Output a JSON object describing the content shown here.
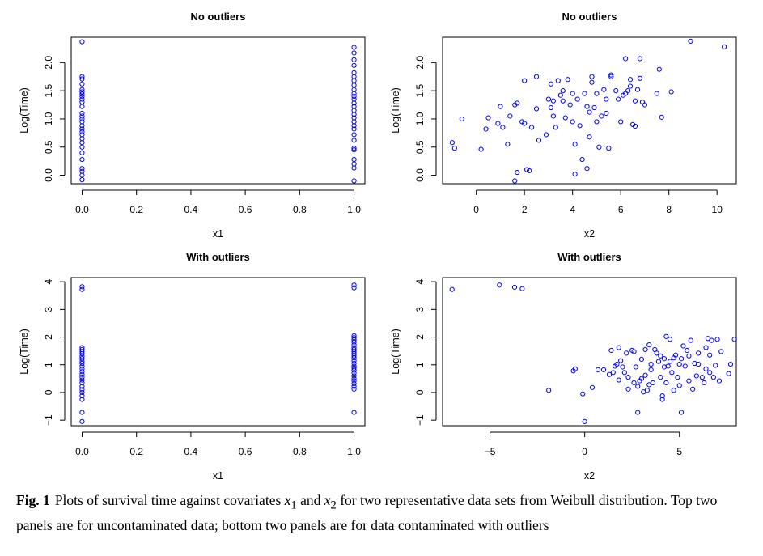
{
  "chart_data": [
    {
      "type": "scatter",
      "title": "No outliers",
      "xlabel": "x1",
      "ylabel": "Log(Time)",
      "xlim": [
        -0.04,
        1.04
      ],
      "ylim": [
        -0.15,
        2.45
      ],
      "xticks": [
        0.0,
        0.2,
        0.4,
        0.6,
        0.8,
        1.0
      ],
      "xtick_labels": [
        "0.0",
        "0.2",
        "0.4",
        "0.6",
        "0.8",
        "1.0"
      ],
      "yticks": [
        0.0,
        0.5,
        1.0,
        1.5,
        2.0
      ],
      "ytick_labels": [
        "0.0",
        "0.5",
        "1.0",
        "1.5",
        "2.0"
      ],
      "color": "#0000ff",
      "marker": "open-circle",
      "grid": false,
      "points": [
        [
          0,
          2.37
        ],
        [
          0,
          1.75
        ],
        [
          0,
          1.71
        ],
        [
          0,
          1.62
        ],
        [
          0,
          1.52
        ],
        [
          0,
          1.48
        ],
        [
          0,
          1.44
        ],
        [
          0,
          1.4
        ],
        [
          0,
          1.35
        ],
        [
          0,
          1.3
        ],
        [
          0,
          1.22
        ],
        [
          0,
          1.1
        ],
        [
          0,
          1.05
        ],
        [
          0,
          1.0
        ],
        [
          0,
          0.95
        ],
        [
          0,
          0.88
        ],
        [
          0,
          0.82
        ],
        [
          0,
          0.77
        ],
        [
          0,
          0.72
        ],
        [
          0,
          0.65
        ],
        [
          0,
          0.58
        ],
        [
          0,
          0.5
        ],
        [
          0,
          0.4
        ],
        [
          0,
          0.28
        ],
        [
          0,
          0.12
        ],
        [
          0,
          0.07
        ],
        [
          0,
          0.0
        ],
        [
          0,
          -0.08
        ],
        [
          1,
          2.27
        ],
        [
          1,
          2.17
        ],
        [
          1,
          2.05
        ],
        [
          1,
          1.95
        ],
        [
          1,
          1.82
        ],
        [
          1,
          1.75
        ],
        [
          1,
          1.68
        ],
        [
          1,
          1.6
        ],
        [
          1,
          1.52
        ],
        [
          1,
          1.45
        ],
        [
          1,
          1.4
        ],
        [
          1,
          1.35
        ],
        [
          1,
          1.28
        ],
        [
          1,
          1.22
        ],
        [
          1,
          1.15
        ],
        [
          1,
          1.08
        ],
        [
          1,
          1.02
        ],
        [
          1,
          0.95
        ],
        [
          1,
          0.88
        ],
        [
          1,
          0.82
        ],
        [
          1,
          0.72
        ],
        [
          1,
          0.62
        ],
        [
          1,
          0.48
        ],
        [
          1,
          0.45
        ],
        [
          1,
          0.28
        ],
        [
          1,
          0.2
        ],
        [
          1,
          0.13
        ],
        [
          1,
          -0.1
        ]
      ]
    },
    {
      "type": "scatter",
      "title": "No outliers",
      "xlabel": "x2",
      "ylabel": "Log(Time)",
      "xlim": [
        -1.4,
        10.8
      ],
      "ylim": [
        -0.15,
        2.45
      ],
      "xticks": [
        0,
        2,
        4,
        6,
        8,
        10
      ],
      "xtick_labels": [
        "0",
        "2",
        "4",
        "6",
        "8",
        "10"
      ],
      "yticks": [
        0.0,
        0.5,
        1.0,
        1.5,
        2.0
      ],
      "ytick_labels": [
        "0.0",
        "0.5",
        "1.0",
        "1.5",
        "2.0"
      ],
      "color": "#0000ff",
      "marker": "open-circle",
      "grid": false,
      "points": [
        [
          -1.0,
          0.58
        ],
        [
          -0.9,
          0.48
        ],
        [
          -0.6,
          1.0
        ],
        [
          0.2,
          0.46
        ],
        [
          0.4,
          0.82
        ],
        [
          0.5,
          1.02
        ],
        [
          0.9,
          0.92
        ],
        [
          1.0,
          1.22
        ],
        [
          1.1,
          0.85
        ],
        [
          1.3,
          0.55
        ],
        [
          1.4,
          1.05
        ],
        [
          1.6,
          1.25
        ],
        [
          1.7,
          1.28
        ],
        [
          1.6,
          -0.1
        ],
        [
          1.7,
          0.05
        ],
        [
          1.9,
          0.95
        ],
        [
          2.0,
          0.92
        ],
        [
          2.0,
          1.68
        ],
        [
          2.1,
          0.1
        ],
        [
          2.2,
          0.08
        ],
        [
          2.3,
          0.85
        ],
        [
          2.5,
          1.18
        ],
        [
          2.5,
          1.75
        ],
        [
          2.6,
          0.62
        ],
        [
          2.9,
          0.72
        ],
        [
          3.0,
          1.35
        ],
        [
          3.1,
          1.62
        ],
        [
          3.1,
          1.2
        ],
        [
          3.2,
          1.05
        ],
        [
          3.2,
          1.32
        ],
        [
          3.3,
          0.85
        ],
        [
          3.4,
          1.68
        ],
        [
          3.5,
          1.42
        ],
        [
          3.6,
          1.5
        ],
        [
          3.6,
          1.32
        ],
        [
          3.7,
          1.02
        ],
        [
          3.8,
          1.7
        ],
        [
          3.9,
          1.25
        ],
        [
          4.0,
          1.45
        ],
        [
          4.0,
          0.95
        ],
        [
          4.1,
          0.02
        ],
        [
          4.1,
          0.55
        ],
        [
          4.2,
          1.35
        ],
        [
          4.3,
          0.88
        ],
        [
          4.4,
          0.28
        ],
        [
          4.5,
          1.45
        ],
        [
          4.6,
          0.12
        ],
        [
          4.6,
          1.22
        ],
        [
          4.7,
          1.12
        ],
        [
          4.7,
          0.68
        ],
        [
          4.8,
          1.65
        ],
        [
          4.8,
          1.75
        ],
        [
          4.9,
          1.2
        ],
        [
          5.0,
          1.45
        ],
        [
          5.0,
          0.95
        ],
        [
          5.1,
          0.5
        ],
        [
          5.2,
          1.05
        ],
        [
          5.3,
          1.52
        ],
        [
          5.4,
          1.35
        ],
        [
          5.4,
          1.1
        ],
        [
          5.5,
          0.48
        ],
        [
          5.6,
          1.78
        ],
        [
          5.6,
          1.75
        ],
        [
          5.8,
          1.5
        ],
        [
          5.9,
          1.35
        ],
        [
          6.0,
          0.95
        ],
        [
          6.1,
          1.42
        ],
        [
          6.2,
          1.45
        ],
        [
          6.2,
          2.07
        ],
        [
          6.3,
          1.5
        ],
        [
          6.4,
          1.58
        ],
        [
          6.4,
          1.7
        ],
        [
          6.5,
          0.9
        ],
        [
          6.6,
          1.32
        ],
        [
          6.6,
          0.87
        ],
        [
          6.7,
          1.52
        ],
        [
          6.8,
          1.72
        ],
        [
          6.8,
          2.07
        ],
        [
          6.9,
          1.3
        ],
        [
          7.0,
          1.25
        ],
        [
          7.5,
          1.45
        ],
        [
          7.6,
          1.88
        ],
        [
          7.7,
          1.03
        ],
        [
          8.1,
          1.48
        ],
        [
          8.9,
          2.38
        ],
        [
          10.3,
          2.28
        ]
      ]
    },
    {
      "type": "scatter",
      "title": "With outliers",
      "xlabel": "x1",
      "ylabel": "Log(Time)",
      "xlim": [
        -0.04,
        1.04
      ],
      "ylim": [
        -1.2,
        4.15
      ],
      "xticks": [
        0.0,
        0.2,
        0.4,
        0.6,
        0.8,
        1.0
      ],
      "xtick_labels": [
        "0.0",
        "0.2",
        "0.4",
        "0.6",
        "0.8",
        "1.0"
      ],
      "yticks": [
        -1,
        0,
        1,
        2,
        3,
        4
      ],
      "ytick_labels": [
        "−1",
        "0",
        "1",
        "2",
        "3",
        "4"
      ],
      "color": "#0000ff",
      "marker": "open-circle",
      "grid": false,
      "points": [
        [
          0,
          3.82
        ],
        [
          0,
          3.72
        ],
        [
          0,
          1.62
        ],
        [
          0,
          1.55
        ],
        [
          0,
          1.48
        ],
        [
          0,
          1.4
        ],
        [
          0,
          1.3
        ],
        [
          0,
          1.22
        ],
        [
          0,
          1.12
        ],
        [
          0,
          1.05
        ],
        [
          0,
          0.95
        ],
        [
          0,
          0.85
        ],
        [
          0,
          0.75
        ],
        [
          0,
          0.65
        ],
        [
          0,
          0.55
        ],
        [
          0,
          0.45
        ],
        [
          0,
          0.35
        ],
        [
          0,
          0.22
        ],
        [
          0,
          0.1
        ],
        [
          0,
          0.0
        ],
        [
          0,
          -0.12
        ],
        [
          0,
          -0.25
        ],
        [
          0,
          -0.72
        ],
        [
          0,
          -1.05
        ],
        [
          1,
          3.88
        ],
        [
          1,
          3.78
        ],
        [
          1,
          2.05
        ],
        [
          1,
          1.98
        ],
        [
          1,
          1.9
        ],
        [
          1,
          1.82
        ],
        [
          1,
          1.72
        ],
        [
          1,
          1.62
        ],
        [
          1,
          1.55
        ],
        [
          1,
          1.48
        ],
        [
          1,
          1.4
        ],
        [
          1,
          1.32
        ],
        [
          1,
          1.25
        ],
        [
          1,
          1.15
        ],
        [
          1,
          1.05
        ],
        [
          1,
          0.95
        ],
        [
          1,
          0.88
        ],
        [
          1,
          0.8
        ],
        [
          1,
          0.7
        ],
        [
          1,
          0.6
        ],
        [
          1,
          0.5
        ],
        [
          1,
          0.42
        ],
        [
          1,
          0.32
        ],
        [
          1,
          0.22
        ],
        [
          1,
          0.12
        ],
        [
          1,
          -0.72
        ]
      ]
    },
    {
      "type": "scatter",
      "title": "With outliers",
      "xlabel": "x2",
      "ylabel": "Log(Time)",
      "xlim": [
        -7.5,
        8.0
      ],
      "ylim": [
        -1.2,
        4.15
      ],
      "xticks": [
        -5,
        0,
        5
      ],
      "xtick_labels": [
        "−5",
        "0",
        "5"
      ],
      "yticks": [
        -1,
        0,
        1,
        2,
        3,
        4
      ],
      "ytick_labels": [
        "−1",
        "0",
        "1",
        "2",
        "3",
        "4"
      ],
      "color": "#0000ff",
      "marker": "open-circle",
      "grid": false,
      "points": [
        [
          -7.0,
          3.72
        ],
        [
          -4.5,
          3.88
        ],
        [
          -3.7,
          3.8
        ],
        [
          -3.3,
          3.75
        ],
        [
          -1.9,
          0.08
        ],
        [
          -0.6,
          0.78
        ],
        [
          -0.5,
          0.85
        ],
        [
          -0.1,
          -0.05
        ],
        [
          0.0,
          -1.05
        ],
        [
          0.4,
          0.18
        ],
        [
          0.7,
          0.82
        ],
        [
          1.0,
          0.82
        ],
        [
          1.3,
          0.65
        ],
        [
          1.4,
          1.52
        ],
        [
          1.5,
          0.72
        ],
        [
          1.6,
          0.95
        ],
        [
          1.7,
          1.02
        ],
        [
          1.8,
          1.62
        ],
        [
          1.8,
          0.45
        ],
        [
          1.9,
          1.15
        ],
        [
          2.0,
          0.92
        ],
        [
          2.1,
          0.72
        ],
        [
          2.2,
          1.42
        ],
        [
          2.3,
          0.55
        ],
        [
          2.3,
          0.12
        ],
        [
          2.5,
          1.52
        ],
        [
          2.6,
          1.48
        ],
        [
          2.6,
          0.35
        ],
        [
          2.7,
          0.92
        ],
        [
          2.8,
          -0.72
        ],
        [
          2.8,
          0.22
        ],
        [
          2.9,
          0.42
        ],
        [
          3.0,
          0.5
        ],
        [
          3.0,
          1.2
        ],
        [
          3.1,
          0.02
        ],
        [
          3.2,
          1.55
        ],
        [
          3.2,
          0.62
        ],
        [
          3.3,
          0.08
        ],
        [
          3.4,
          1.72
        ],
        [
          3.4,
          0.28
        ],
        [
          3.5,
          0.82
        ],
        [
          3.5,
          1.02
        ],
        [
          3.6,
          0.35
        ],
        [
          3.7,
          1.55
        ],
        [
          3.8,
          1.42
        ],
        [
          3.9,
          1.12
        ],
        [
          4.0,
          0.55
        ],
        [
          4.0,
          1.32
        ],
        [
          4.1,
          -0.12
        ],
        [
          4.1,
          -0.25
        ],
        [
          4.2,
          0.92
        ],
        [
          4.2,
          1.22
        ],
        [
          4.3,
          2.02
        ],
        [
          4.3,
          0.35
        ],
        [
          4.4,
          0.95
        ],
        [
          4.5,
          1.12
        ],
        [
          4.5,
          1.92
        ],
        [
          4.6,
          0.72
        ],
        [
          4.7,
          1.25
        ],
        [
          4.7,
          0.08
        ],
        [
          4.8,
          1.35
        ],
        [
          4.9,
          0.55
        ],
        [
          5.0,
          1.02
        ],
        [
          5.0,
          0.25
        ],
        [
          5.1,
          -0.72
        ],
        [
          5.1,
          1.22
        ],
        [
          5.2,
          1.68
        ],
        [
          5.3,
          0.95
        ],
        [
          5.4,
          1.52
        ],
        [
          5.5,
          1.32
        ],
        [
          5.5,
          0.42
        ],
        [
          5.6,
          1.88
        ],
        [
          5.7,
          0.12
        ],
        [
          5.8,
          1.05
        ],
        [
          5.9,
          0.6
        ],
        [
          6.0,
          1.02
        ],
        [
          6.0,
          1.42
        ],
        [
          6.2,
          0.55
        ],
        [
          6.3,
          0.35
        ],
        [
          6.4,
          1.62
        ],
        [
          6.4,
          0.85
        ],
        [
          6.5,
          1.95
        ],
        [
          6.6,
          1.35
        ],
        [
          6.6,
          0.72
        ],
        [
          6.7,
          1.88
        ],
        [
          6.8,
          0.55
        ],
        [
          6.9,
          0.98
        ],
        [
          7.0,
          1.92
        ],
        [
          7.1,
          0.42
        ],
        [
          7.2,
          1.48
        ],
        [
          7.6,
          0.68
        ],
        [
          7.7,
          1.02
        ],
        [
          7.9,
          1.92
        ]
      ]
    }
  ],
  "caption": {
    "label": "Fig. 1",
    "text_before_x1": "Plots of survival time against covariates ",
    "x1_name": "x",
    "x1_sub": "1",
    "and_word": " and ",
    "x2_name": "x",
    "x2_sub": "2",
    "text_after_x2": " for two representative data sets from Weibull distribution. Top two panels are for uncontaminated data; bottom two panels are for data contaminated with outliers"
  }
}
